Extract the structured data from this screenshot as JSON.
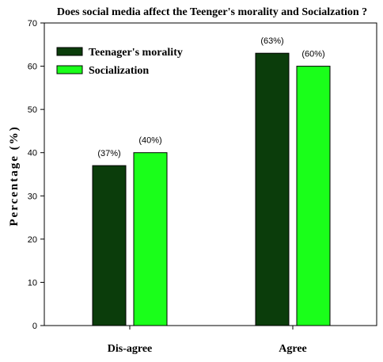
{
  "chart_data": {
    "type": "bar",
    "title": "Does social media affect the Teenger's morality and Socialzation ?",
    "xlabel": "",
    "ylabel": "Percentage (%)",
    "ylim": [
      0,
      70
    ],
    "yticks": [
      0,
      10,
      20,
      30,
      40,
      50,
      60,
      70
    ],
    "categories": [
      "Dis-agree",
      "Agree"
    ],
    "series": [
      {
        "name": "Teenager's morality",
        "color": "#0b3d0b",
        "values": [
          37,
          63
        ],
        "labels": [
          "(37%)",
          "(63%)"
        ]
      },
      {
        "name": "Socialization",
        "color": "#1aff1a",
        "values": [
          40,
          60
        ],
        "labels": [
          "(40%)",
          "(60%)"
        ]
      }
    ],
    "grid": false,
    "legend": "top-left"
  }
}
